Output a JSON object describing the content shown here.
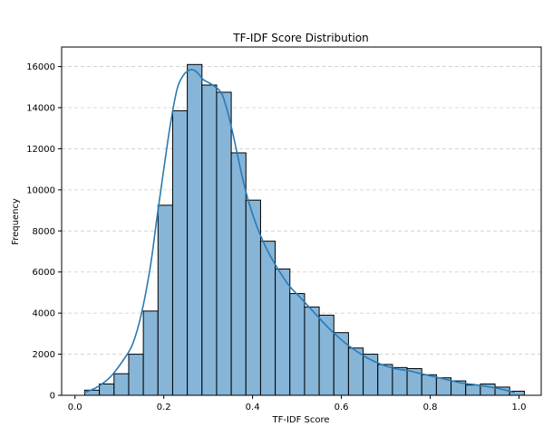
{
  "chart_data": {
    "type": "histogram",
    "title": "TF-IDF Score Distribution",
    "xlabel": "TF-IDF Score",
    "ylabel": "Frequency",
    "xlim": [
      -0.03,
      1.05
    ],
    "ylim": [
      0,
      16950
    ],
    "x_ticks": [
      0.0,
      0.2,
      0.4,
      0.6,
      0.8,
      1.0
    ],
    "x_tick_labels": [
      "0.0",
      "0.2",
      "0.4",
      "0.6",
      "0.8",
      "1.0"
    ],
    "y_ticks": [
      0,
      2000,
      4000,
      6000,
      8000,
      10000,
      12000,
      14000,
      16000
    ],
    "y_tick_labels": [
      "0",
      "2000",
      "4000",
      "6000",
      "8000",
      "10000",
      "12000",
      "14000",
      "16000"
    ],
    "grid": "y-dashed",
    "bin_edges": [
      0.022,
      0.055,
      0.088,
      0.121,
      0.154,
      0.187,
      0.22,
      0.253,
      0.286,
      0.319,
      0.352,
      0.385,
      0.418,
      0.451,
      0.484,
      0.517,
      0.55,
      0.583,
      0.616,
      0.649,
      0.682,
      0.715,
      0.748,
      0.781,
      0.814,
      0.847,
      0.88,
      0.913,
      0.946,
      0.979
    ],
    "counts": [
      250,
      550,
      1050,
      2000,
      4100,
      9250,
      13850,
      16100,
      15100,
      14750,
      11800,
      9500,
      7500,
      6150,
      4950,
      4300,
      3900,
      3050,
      2300,
      2000,
      1500,
      1350,
      1300,
      1000,
      850,
      700,
      500,
      550,
      400,
      200
    ],
    "kde": {
      "x": [
        0.02,
        0.05,
        0.08,
        0.11,
        0.13,
        0.15,
        0.17,
        0.185,
        0.2,
        0.215,
        0.23,
        0.245,
        0.26,
        0.27,
        0.28,
        0.29,
        0.31,
        0.33,
        0.345,
        0.36,
        0.375,
        0.39,
        0.41,
        0.43,
        0.45,
        0.48,
        0.51,
        0.54,
        0.57,
        0.6,
        0.63,
        0.66,
        0.69,
        0.72,
        0.75,
        0.78,
        0.81,
        0.84,
        0.87,
        0.9,
        0.93,
        0.96,
        0.99
      ],
      "y": [
        120,
        400,
        900,
        1750,
        2500,
        4000,
        6300,
        8700,
        11000,
        13200,
        14900,
        15600,
        15850,
        15800,
        15600,
        15350,
        15100,
        14700,
        13700,
        12300,
        10800,
        9500,
        8200,
        7200,
        6400,
        5400,
        4700,
        4000,
        3300,
        2700,
        2200,
        1800,
        1500,
        1300,
        1200,
        1050,
        900,
        750,
        600,
        520,
        420,
        300,
        130
      ]
    },
    "colors": {
      "bar_fill": "#86b5d8",
      "bar_edge": "#000000",
      "kde_line": "#2a7ab5",
      "grid": "#cccccc"
    }
  }
}
